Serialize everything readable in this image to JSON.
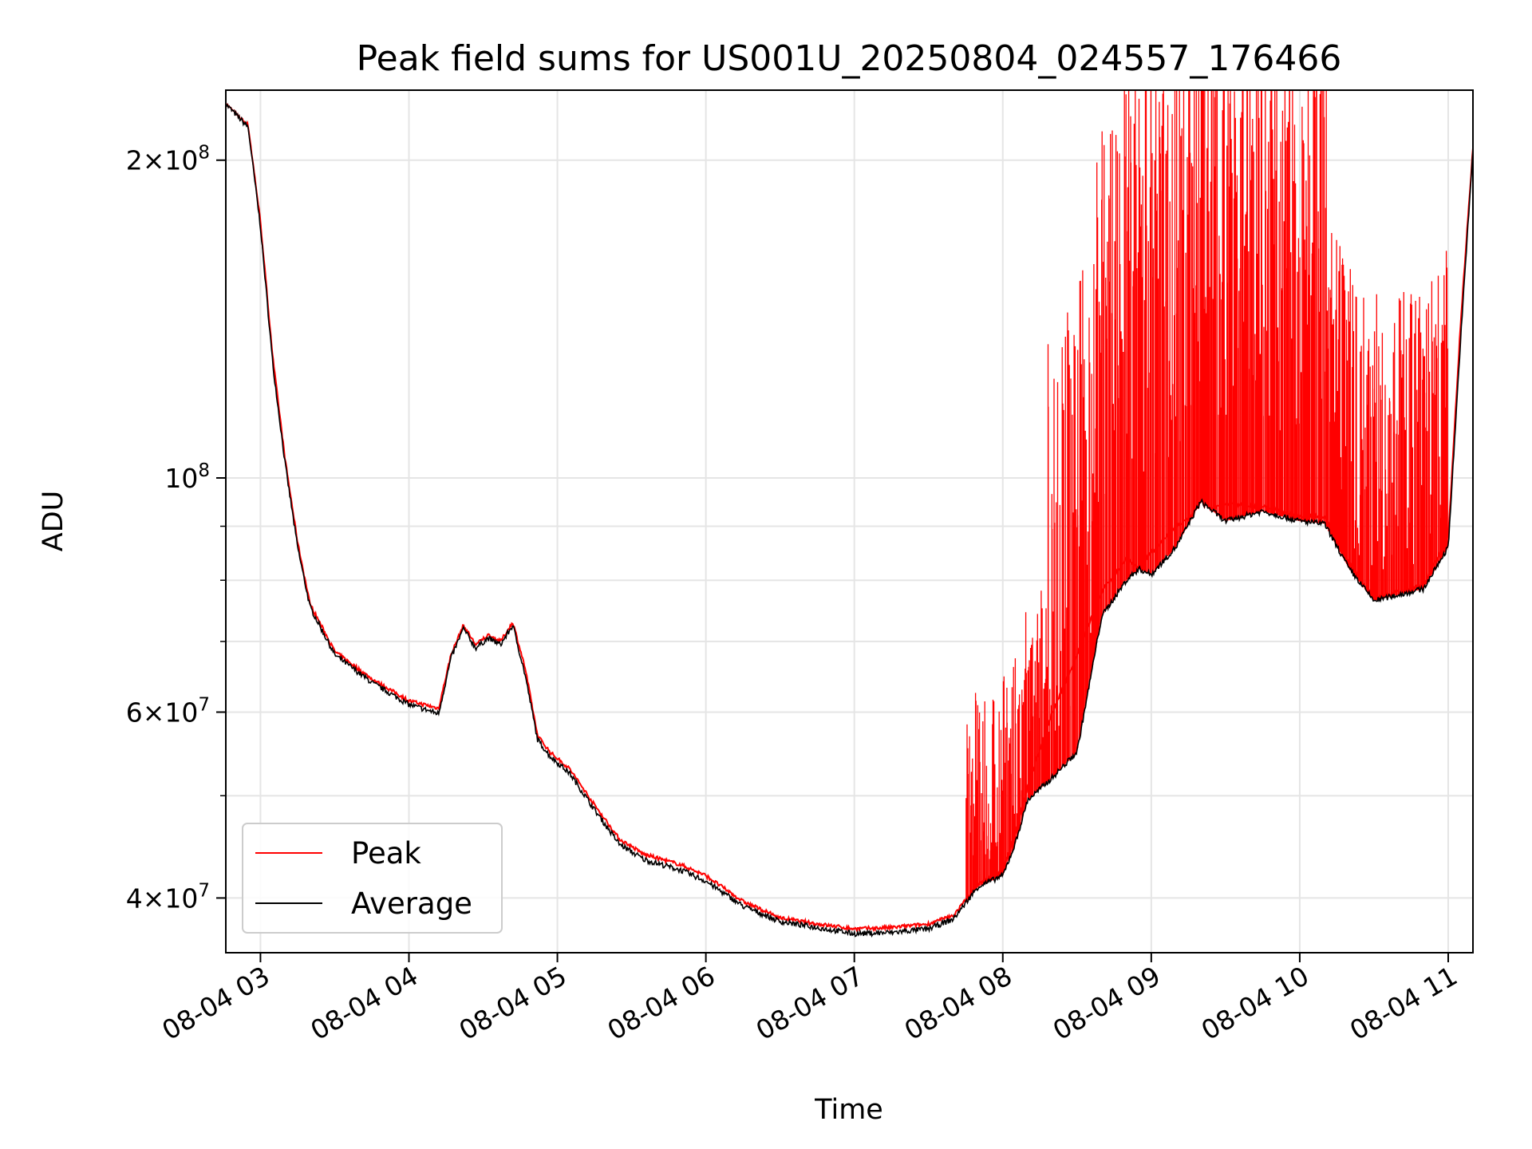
{
  "chart_data": {
    "type": "line",
    "title": "Peak field sums for US001U_20250804_024557_176466",
    "xlabel": "Time",
    "ylabel": "ADU",
    "xscale": "time",
    "yscale": "log",
    "xlim": [
      "2025-08-04 02:46",
      "2025-08-04 11:10"
    ],
    "ylim": [
      35500000,
      233000000
    ],
    "grid": true,
    "legend_position": "lower-left",
    "x_ticks": [
      {
        "value": "2025-08-04 03:00",
        "label": "08-04 03"
      },
      {
        "value": "2025-08-04 04:00",
        "label": "08-04 04"
      },
      {
        "value": "2025-08-04 05:00",
        "label": "08-04 05"
      },
      {
        "value": "2025-08-04 06:00",
        "label": "08-04 06"
      },
      {
        "value": "2025-08-04 07:00",
        "label": "08-04 07"
      },
      {
        "value": "2025-08-04 08:00",
        "label": "08-04 08"
      },
      {
        "value": "2025-08-04 09:00",
        "label": "08-04 09"
      },
      {
        "value": "2025-08-04 10:00",
        "label": "08-04 10"
      },
      {
        "value": "2025-08-04 11:00",
        "label": "08-04 11"
      }
    ],
    "y_ticks": [
      {
        "value": 40000000,
        "mantissa": "4",
        "exp": "7"
      },
      {
        "value": 60000000,
        "mantissa": "6",
        "exp": "7"
      },
      {
        "value": 100000000,
        "mantissa": "",
        "exp": "8"
      },
      {
        "value": 200000000,
        "mantissa": "2",
        "exp": "8"
      }
    ],
    "y_minor_ticks": [
      50000000,
      70000000,
      80000000,
      90000000
    ],
    "series": [
      {
        "name": "Peak",
        "color": "#ff0000",
        "x": [
          "2025-08-04 02:46",
          "2025-08-04 02:50",
          "2025-08-04 02:55",
          "2025-08-04 03:00",
          "2025-08-04 03:05",
          "2025-08-04 03:10",
          "2025-08-04 03:15",
          "2025-08-04 03:20",
          "2025-08-04 03:30",
          "2025-08-04 03:45",
          "2025-08-04 04:00",
          "2025-08-04 04:12",
          "2025-08-04 04:17",
          "2025-08-04 04:22",
          "2025-08-04 04:27",
          "2025-08-04 04:32",
          "2025-08-04 04:37",
          "2025-08-04 04:42",
          "2025-08-04 04:47",
          "2025-08-04 04:52",
          "2025-08-04 04:57",
          "2025-08-04 05:05",
          "2025-08-04 05:15",
          "2025-08-04 05:25",
          "2025-08-04 05:35",
          "2025-08-04 05:50",
          "2025-08-04 06:00",
          "2025-08-04 06:15",
          "2025-08-04 06:30",
          "2025-08-04 06:45",
          "2025-08-04 07:00",
          "2025-08-04 07:15",
          "2025-08-04 07:30",
          "2025-08-04 07:40",
          "2025-08-04 07:50",
          "2025-08-04 08:00",
          "2025-08-04 08:05",
          "2025-08-04 08:10",
          "2025-08-04 08:20",
          "2025-08-04 08:30",
          "2025-08-04 08:40",
          "2025-08-04 08:50",
          "2025-08-04 08:55",
          "2025-08-04 09:00",
          "2025-08-04 09:10",
          "2025-08-04 09:20",
          "2025-08-04 09:30",
          "2025-08-04 09:45",
          "2025-08-04 10:00",
          "2025-08-04 10:10",
          "2025-08-04 10:20",
          "2025-08-04 10:30",
          "2025-08-04 10:40",
          "2025-08-04 10:50",
          "2025-08-04 11:00",
          "2025-08-04 11:05",
          "2025-08-04 11:10"
        ],
        "values": [
          226000000,
          221000000,
          216000000,
          175000000,
          130000000,
          104000000,
          87000000,
          76000000,
          68500000,
          64500000,
          61500000,
          60500000,
          68000000,
          72500000,
          69500000,
          71000000,
          70000000,
          73000000,
          66000000,
          57000000,
          55000000,
          53000000,
          49000000,
          45500000,
          44000000,
          43000000,
          42000000,
          39700000,
          38300000,
          37800000,
          37400000,
          37500000,
          37800000,
          38500000,
          41200000,
          42500000,
          46000000,
          51000000,
          60000000,
          68000000,
          78000000,
          84000000,
          82000000,
          85000000,
          90000000,
          93000000,
          94500000,
          94000000,
          92000000,
          92000000,
          83000000,
          77000000,
          78000000,
          79000000,
          88000000,
          140000000,
          206000000
        ]
      },
      {
        "name": "Average",
        "color": "#000000",
        "x": [
          "2025-08-04 02:46",
          "2025-08-04 02:50",
          "2025-08-04 02:55",
          "2025-08-04 03:00",
          "2025-08-04 03:05",
          "2025-08-04 03:10",
          "2025-08-04 03:15",
          "2025-08-04 03:20",
          "2025-08-04 03:30",
          "2025-08-04 03:45",
          "2025-08-04 04:00",
          "2025-08-04 04:12",
          "2025-08-04 04:17",
          "2025-08-04 04:22",
          "2025-08-04 04:27",
          "2025-08-04 04:32",
          "2025-08-04 04:37",
          "2025-08-04 04:42",
          "2025-08-04 04:47",
          "2025-08-04 04:52",
          "2025-08-04 04:57",
          "2025-08-04 05:05",
          "2025-08-04 05:15",
          "2025-08-04 05:25",
          "2025-08-04 05:35",
          "2025-08-04 05:50",
          "2025-08-04 06:00",
          "2025-08-04 06:15",
          "2025-08-04 06:30",
          "2025-08-04 06:45",
          "2025-08-04 07:00",
          "2025-08-04 07:15",
          "2025-08-04 07:30",
          "2025-08-04 07:40",
          "2025-08-04 07:50",
          "2025-08-04 08:00",
          "2025-08-04 08:05",
          "2025-08-04 08:10",
          "2025-08-04 08:20",
          "2025-08-04 08:30",
          "2025-08-04 08:40",
          "2025-08-04 08:50",
          "2025-08-04 08:55",
          "2025-08-04 09:00",
          "2025-08-04 09:10",
          "2025-08-04 09:20",
          "2025-08-04 09:30",
          "2025-08-04 09:45",
          "2025-08-04 10:00",
          "2025-08-04 10:10",
          "2025-08-04 10:20",
          "2025-08-04 10:30",
          "2025-08-04 10:40",
          "2025-08-04 10:50",
          "2025-08-04 11:00",
          "2025-08-04 11:05",
          "2025-08-04 11:10"
        ],
        "values": [
          226000000,
          221000000,
          215000000,
          173000000,
          128000000,
          103000000,
          86000000,
          75500000,
          68000000,
          64000000,
          61000000,
          59800000,
          67500000,
          72000000,
          69000000,
          70500000,
          69500000,
          72500000,
          65000000,
          56500000,
          54500000,
          52500000,
          48500000,
          45000000,
          43500000,
          42500000,
          41500000,
          39300000,
          38000000,
          37500000,
          37000000,
          37100000,
          37400000,
          38200000,
          41000000,
          42000000,
          45000000,
          49500000,
          52000000,
          55000000,
          74000000,
          80000000,
          82000000,
          81000000,
          86000000,
          95000000,
          91000000,
          93000000,
          91000000,
          90500000,
          82000000,
          76500000,
          77500000,
          78500000,
          86000000,
          135000000,
          205000000
        ]
      }
    ],
    "peak_spikes": {
      "from": "2025-08-04 07:45",
      "to": "2025-08-04 11:00",
      "range_max": 233000000
    }
  }
}
